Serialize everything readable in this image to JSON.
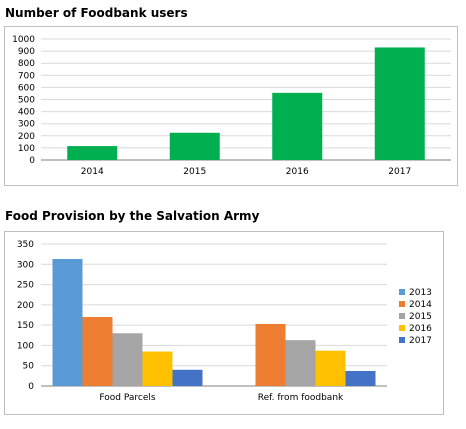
{
  "chart_data": [
    {
      "type": "bar",
      "title": "Number of Foodbank users",
      "categories": [
        "2014",
        "2015",
        "2016",
        "2017"
      ],
      "values": [
        115,
        225,
        555,
        930
      ],
      "ylim": [
        0,
        1000
      ],
      "yticks": [
        0,
        100,
        200,
        300,
        400,
        500,
        600,
        700,
        800,
        900,
        1000
      ],
      "color": "#00b050",
      "grid": true,
      "legend": "none"
    },
    {
      "type": "bar",
      "title": "Food Provision by the Salvation Army",
      "categories": [
        "Food Parcels",
        "Ref. from foodbank"
      ],
      "series": [
        {
          "name": "2013",
          "values": [
            313,
            0
          ],
          "color": "#5b9bd5"
        },
        {
          "name": "2014",
          "values": [
            170,
            153
          ],
          "color": "#ed7d31"
        },
        {
          "name": "2015",
          "values": [
            130,
            113
          ],
          "color": "#a5a5a5"
        },
        {
          "name": "2016",
          "values": [
            85,
            87
          ],
          "color": "#ffc000"
        },
        {
          "name": "2017",
          "values": [
            40,
            37
          ],
          "color": "#4472c4"
        }
      ],
      "ylim": [
        0,
        350
      ],
      "yticks": [
        0,
        50,
        100,
        150,
        200,
        250,
        300,
        350
      ],
      "grid": true,
      "legend": "right"
    }
  ]
}
